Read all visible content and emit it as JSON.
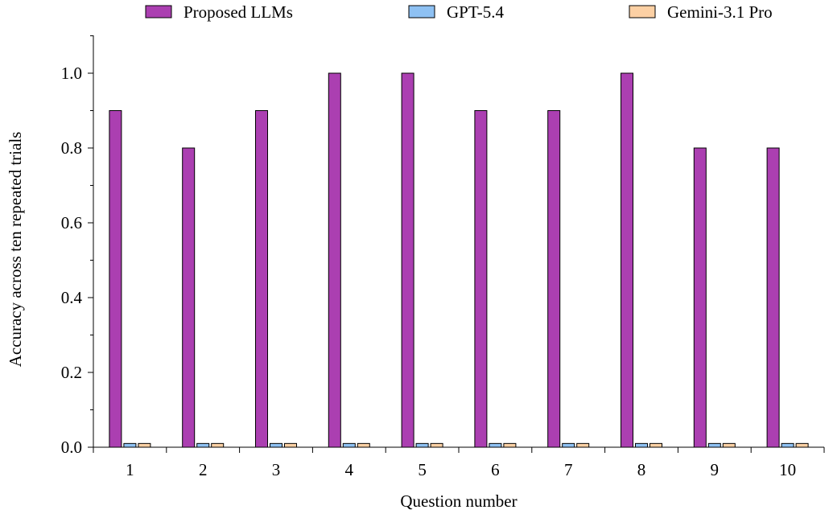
{
  "chart_data": {
    "type": "bar",
    "title": "",
    "xlabel": "Question number",
    "ylabel": "Accuracy across ten repeated trials",
    "categories": [
      "1",
      "2",
      "3",
      "4",
      "5",
      "6",
      "7",
      "8",
      "9",
      "10"
    ],
    "ylim": [
      0,
      1.1
    ],
    "yticks": [
      "0.0",
      "0.2",
      "0.4",
      "0.6",
      "0.8",
      "1.0"
    ],
    "legend_position": "top",
    "grid": false,
    "series": [
      {
        "name": "Proposed LLMs",
        "color": "#ab3fb1",
        "values": [
          0.9,
          0.8,
          0.9,
          1.0,
          1.0,
          0.9,
          0.9,
          1.0,
          0.8,
          0.8
        ]
      },
      {
        "name": "GPT-5.4",
        "color": "#8ec1f3",
        "values": [
          0.01,
          0.01,
          0.01,
          0.01,
          0.01,
          0.01,
          0.01,
          0.01,
          0.01,
          0.01
        ]
      },
      {
        "name": "Gemini-3.1 Pro",
        "color": "#fcd0a4",
        "values": [
          0.01,
          0.01,
          0.01,
          0.01,
          0.01,
          0.01,
          0.01,
          0.01,
          0.01,
          0.01
        ]
      }
    ]
  }
}
